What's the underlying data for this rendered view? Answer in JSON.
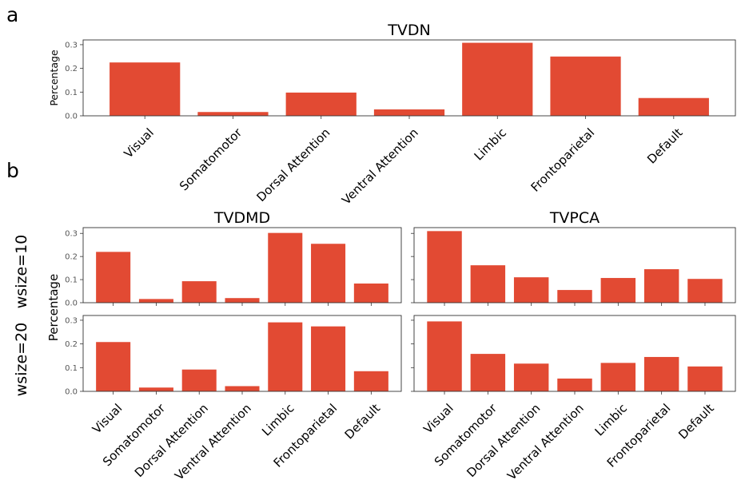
{
  "figure": {
    "section_a_label": "a",
    "section_b_label": "b",
    "row_labels": [
      "wsize=10",
      "wsize=20"
    ],
    "shared_ylabel": "Percentage"
  },
  "chart_data": [
    {
      "id": "tvdn",
      "type": "bar",
      "title": "TVDN",
      "ylabel": "Percentage",
      "categories": [
        "Visual",
        "Somatomotor",
        "Dorsal Attention",
        "Ventral Attention",
        "Limbic",
        "Frontoparietal",
        "Default"
      ],
      "values": [
        0.225,
        0.016,
        0.098,
        0.027,
        0.308,
        0.25,
        0.075
      ],
      "ylim": [
        0,
        0.32
      ],
      "yticks": [
        "0.0",
        "0.1",
        "0.2",
        "0.3"
      ],
      "bar_color": "#e24a33",
      "grid": false
    },
    {
      "id": "tvdmd-w10",
      "type": "bar",
      "title": "TVDMD",
      "categories": [
        "Visual",
        "Somatomotor",
        "Dorsal Attention",
        "Ventral Attention",
        "Limbic",
        "Frontoparietal",
        "Default"
      ],
      "values": [
        0.22,
        0.016,
        0.093,
        0.02,
        0.302,
        0.255,
        0.083
      ],
      "ylim": [
        0,
        0.325
      ],
      "yticks": [
        "0.0",
        "0.1",
        "0.2",
        "0.3"
      ],
      "bar_color": "#e24a33",
      "grid": false
    },
    {
      "id": "tvpca-w10",
      "type": "bar",
      "title": "TVPCA",
      "categories": [
        "Visual",
        "Somatomotor",
        "Dorsal Attention",
        "Ventral Attention",
        "Limbic",
        "Frontoparietal",
        "Default"
      ],
      "values": [
        0.31,
        0.162,
        0.11,
        0.055,
        0.107,
        0.145,
        0.103
      ],
      "ylim": [
        0,
        0.325
      ],
      "bar_color": "#e24a33",
      "grid": false
    },
    {
      "id": "tvdmd-w20",
      "type": "bar",
      "categories": [
        "Visual",
        "Somatomotor",
        "Dorsal Attention",
        "Ventral Attention",
        "Limbic",
        "Frontoparietal",
        "Default"
      ],
      "values": [
        0.208,
        0.016,
        0.092,
        0.022,
        0.291,
        0.274,
        0.085
      ],
      "ylim": [
        0,
        0.32
      ],
      "yticks": [
        "0.0",
        "0.1",
        "0.2",
        "0.3"
      ],
      "bar_color": "#e24a33",
      "grid": false
    },
    {
      "id": "tvpca-w20",
      "type": "bar",
      "categories": [
        "Visual",
        "Somatomotor",
        "Dorsal Attention",
        "Ventral Attention",
        "Limbic",
        "Frontoparietal",
        "Default"
      ],
      "values": [
        0.295,
        0.158,
        0.117,
        0.054,
        0.12,
        0.145,
        0.105
      ],
      "ylim": [
        0,
        0.32
      ],
      "bar_color": "#e24a33",
      "grid": false
    }
  ]
}
